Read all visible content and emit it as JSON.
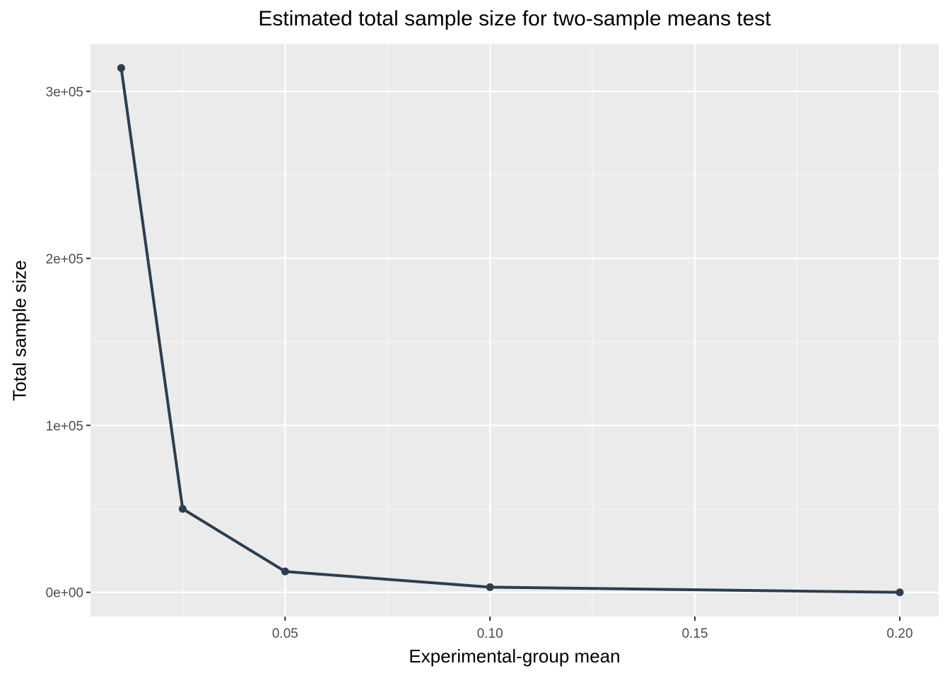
{
  "chart_data": {
    "type": "line",
    "title": "Estimated total sample size for two-sample means test",
    "xlabel": "Experimental-group mean",
    "ylabel": "Total sample size",
    "x": [
      0.01,
      0.025,
      0.05,
      0.1,
      0.2
    ],
    "y": [
      314000,
      50000,
      12500,
      3100,
      0
    ],
    "xlim": [
      0.0025,
      0.2095
    ],
    "ylim": [
      -14500,
      328500
    ],
    "x_ticks": [
      0.05,
      0.1,
      0.15,
      0.2
    ],
    "x_tick_labels": [
      "0.05",
      "0.10",
      "0.15",
      "0.20"
    ],
    "x_minor_ticks": [
      0.025,
      0.075,
      0.125,
      0.175
    ],
    "y_ticks": [
      0,
      100000,
      200000,
      300000
    ],
    "y_tick_labels": [
      "0e+00",
      "1e+05",
      "2e+05",
      "3e+05"
    ],
    "y_minor_ticks": [
      50000,
      150000,
      250000
    ],
    "grid": true,
    "legend": "none",
    "colors": {
      "line": "#2c3e50",
      "panel": "#ebebeb",
      "grid_major": "#ffffff",
      "grid_minor": "#f7f7f7",
      "tick_text": "#4d4d4d"
    }
  }
}
